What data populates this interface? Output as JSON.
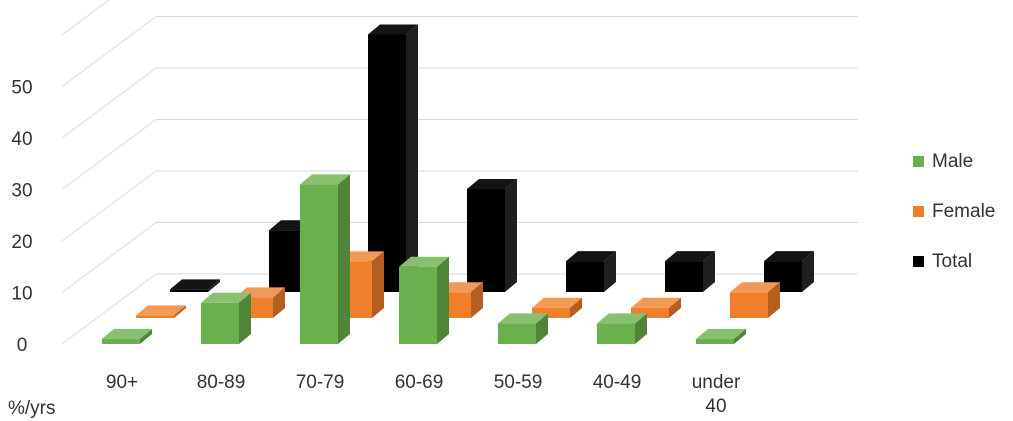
{
  "chart_data": {
    "type": "bar",
    "style": "3d-clustered-depth",
    "categories": [
      "90+",
      "80-89",
      "70-79",
      "60-69",
      "50-59",
      "40-49",
      "under 40"
    ],
    "series": [
      {
        "name": "Male",
        "color": "#6ab04c",
        "values": [
          1,
          8,
          31,
          15,
          4,
          4,
          1
        ]
      },
      {
        "name": "Female",
        "color": "#f07f2c",
        "values": [
          0.5,
          4,
          11,
          5,
          2,
          2,
          5
        ]
      },
      {
        "name": "Total",
        "color": "#000000",
        "values": [
          0.5,
          12,
          50,
          20,
          6,
          6,
          6
        ]
      }
    ],
    "ylim": [
      0,
      60
    ],
    "yticks": [
      0,
      10,
      20,
      30,
      40,
      50
    ],
    "xlabel": "%/yrs",
    "ylabel": "",
    "grid": true,
    "legend_position": "right"
  }
}
